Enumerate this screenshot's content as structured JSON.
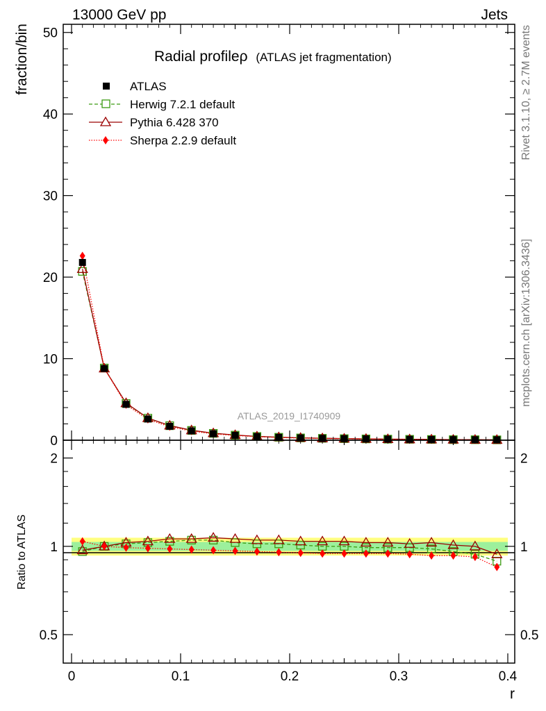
{
  "header": {
    "left": "13000 GeV pp",
    "right": "Jets"
  },
  "side_labels": {
    "rivet": "Rivet 3.1.10, ≥ 2.7M events",
    "mcplots": "mcplots.cern.ch [arXiv:1306.3436]"
  },
  "watermark": "ATLAS_2019_I1740909",
  "colors": {
    "atlas": "#000000",
    "herwig": "#3a9a10",
    "pythia": "#9b0000",
    "sherpa": "#ff0000",
    "band_green": "#9cf09c",
    "band_yellow": "#ffff80"
  },
  "chart_data": [
    {
      "type": "scatter",
      "panel": "main",
      "title": "Radial profile ρ",
      "title_main": "Radial profile",
      "title_symbol": "ρ",
      "subtitle": "(ATLAS jet fragmentation)",
      "xlabel": "r",
      "ylabel": "fraction/bin",
      "xlim": [
        0,
        0.4
      ],
      "ylim": [
        0,
        51
      ],
      "yticks": [
        0,
        10,
        20,
        30,
        40,
        50
      ],
      "ytick_labels": [
        "0",
        "10",
        "20",
        "30",
        "40",
        "50"
      ],
      "x": [
        0.01,
        0.03,
        0.05,
        0.07,
        0.09,
        0.11,
        0.13,
        0.15,
        0.17,
        0.19,
        0.21,
        0.23,
        0.25,
        0.27,
        0.29,
        0.31,
        0.33,
        0.35,
        0.37,
        0.39
      ],
      "legend": [
        "ATLAS",
        "Herwig 7.2.1 default",
        "Pythia 6.428 370",
        "Sherpa 2.2.9 default"
      ],
      "legend_position": "top-left",
      "series": [
        {
          "name": "ATLAS",
          "marker": "square-filled",
          "values": [
            21.8,
            8.8,
            4.4,
            2.6,
            1.7,
            1.15,
            0.8,
            0.6,
            0.45,
            0.35,
            0.28,
            0.23,
            0.19,
            0.16,
            0.13,
            0.11,
            0.09,
            0.07,
            0.06,
            0.05
          ]
        },
        {
          "name": "Herwig 7.2.1 default",
          "marker": "square-open",
          "line": "dashed",
          "values": [
            20.7,
            8.85,
            4.5,
            2.7,
            1.78,
            1.2,
            0.84,
            0.62,
            0.46,
            0.36,
            0.28,
            0.23,
            0.19,
            0.16,
            0.13,
            0.11,
            0.09,
            0.07,
            0.06,
            0.045
          ]
        },
        {
          "name": "Pythia 6.428 370",
          "marker": "triangle-open",
          "line": "solid",
          "values": [
            21.0,
            8.8,
            4.55,
            2.72,
            1.8,
            1.22,
            0.86,
            0.64,
            0.47,
            0.37,
            0.29,
            0.24,
            0.2,
            0.17,
            0.14,
            0.11,
            0.093,
            0.072,
            0.06,
            0.047
          ]
        },
        {
          "name": "Sherpa 2.2.9 default",
          "marker": "diamond-filled",
          "line": "dotted",
          "values": [
            22.6,
            8.85,
            4.35,
            2.55,
            1.66,
            1.12,
            0.78,
            0.58,
            0.43,
            0.33,
            0.26,
            0.21,
            0.17,
            0.145,
            0.12,
            0.1,
            0.082,
            0.064,
            0.055,
            0.042
          ]
        }
      ]
    },
    {
      "type": "scatter",
      "panel": "ratio",
      "ylabel": "Ratio to ATLAS",
      "xlabel": "r",
      "xlim": [
        0,
        0.4
      ],
      "ylim": [
        0.4,
        2.3
      ],
      "yscale": "log",
      "yticks": [
        0.5,
        1,
        2
      ],
      "ytick_labels": [
        "0.5",
        "1",
        "2"
      ],
      "xticks": [
        0,
        0.1,
        0.2,
        0.3,
        0.4
      ],
      "xtick_labels": [
        "0",
        "0.1",
        "0.2",
        "0.3",
        "0.4"
      ],
      "x": [
        0.01,
        0.03,
        0.05,
        0.07,
        0.09,
        0.11,
        0.13,
        0.15,
        0.17,
        0.19,
        0.21,
        0.23,
        0.25,
        0.27,
        0.29,
        0.31,
        0.33,
        0.35,
        0.37,
        0.39
      ],
      "band_green_halfwidth": 0.035,
      "band_yellow_halfwidth": 0.07,
      "series": [
        {
          "name": "Herwig 7.2.1 default",
          "marker": "square-open",
          "line": "dashed",
          "values": [
            0.96,
            1.0,
            1.02,
            1.03,
            1.04,
            1.05,
            1.05,
            1.03,
            1.02,
            1.02,
            1.01,
            1.0,
            1.0,
            0.99,
            0.99,
            0.99,
            0.98,
            0.96,
            0.94,
            0.89
          ]
        },
        {
          "name": "Pythia 6.428 370",
          "marker": "triangle-open",
          "line": "solid",
          "values": [
            0.97,
            1.0,
            1.03,
            1.04,
            1.06,
            1.06,
            1.07,
            1.06,
            1.05,
            1.05,
            1.04,
            1.04,
            1.04,
            1.03,
            1.03,
            1.02,
            1.03,
            1.01,
            1.0,
            0.94
          ]
        },
        {
          "name": "Sherpa 2.2.9 default",
          "marker": "diamond-filled",
          "line": "dotted",
          "values": [
            1.04,
            1.0,
            0.99,
            0.985,
            0.98,
            0.975,
            0.97,
            0.965,
            0.96,
            0.955,
            0.95,
            0.945,
            0.945,
            0.945,
            0.945,
            0.94,
            0.93,
            0.93,
            0.92,
            0.85
          ]
        }
      ]
    }
  ]
}
